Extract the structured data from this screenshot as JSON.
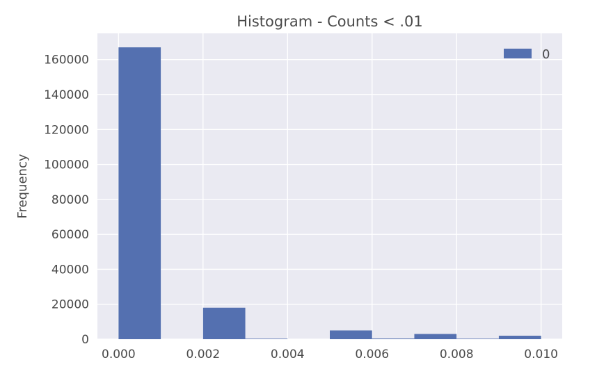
{
  "chart_data": {
    "type": "bar",
    "title": "Histogram - Counts < .01",
    "xlabel": "",
    "ylabel": "Frequency",
    "xlim": [
      -0.0005,
      0.0105
    ],
    "ylim": [
      0,
      175000
    ],
    "x_ticks": [
      "0.000",
      "0.002",
      "0.004",
      "0.006",
      "0.008",
      "0.010"
    ],
    "y_ticks": [
      "0",
      "20000",
      "40000",
      "60000",
      "80000",
      "100000",
      "120000",
      "140000",
      "160000"
    ],
    "grid": true,
    "legend_position": "top-right",
    "bin_edges": [
      0.0,
      0.001,
      0.002,
      0.003,
      0.004,
      0.005,
      0.006,
      0.007,
      0.008,
      0.009,
      0.01
    ],
    "series": [
      {
        "name": "0",
        "color": "#5470b0",
        "values": [
          167000,
          0,
          18000,
          300,
          0,
          5000,
          400,
          3000,
          300,
          2000
        ]
      }
    ]
  }
}
